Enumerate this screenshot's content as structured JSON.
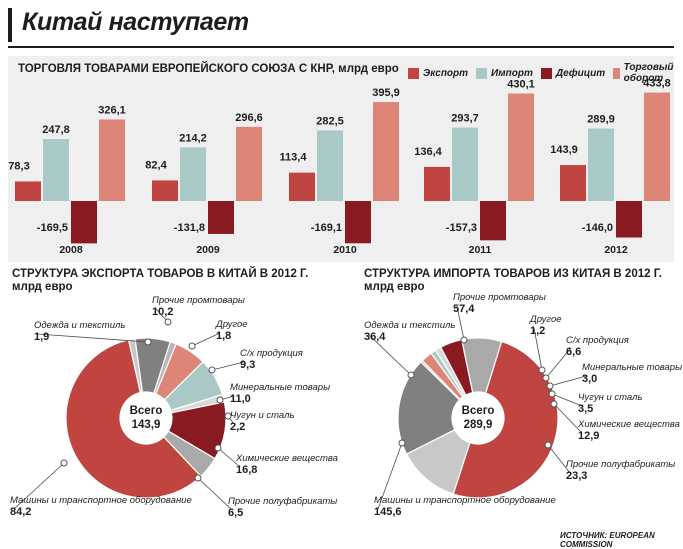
{
  "title": "Китай наступает",
  "bar_title": "ТОРГОВЛЯ ТОВАРАМИ ЕВРОПЕЙСКОГО СОЮЗА С КНР, млрд евро",
  "legend": [
    {
      "label": "Экспорт",
      "color": "#c0443f"
    },
    {
      "label": "Импорт",
      "color": "#a8c9c5"
    },
    {
      "label": "Дефицит",
      "color": "#8a1a22"
    },
    {
      "label": "Торговый оборот",
      "color": "#dd8576"
    }
  ],
  "export_title": {
    "line1": "СТРУКТУРА ЭКСПОРТА ТОВАРОВ В КИТАЙ В 2012 Г.",
    "line2": "млрд евро"
  },
  "import_title": {
    "line1": "СТРУКТУРА ИМПОРТА ТОВАРОВ ИЗ КИТАЯ В 2012 Г.",
    "line2": "млрд евро"
  },
  "source": "ИСТОЧНИК: EUROPEAN COMMISSION",
  "chart_data": [
    {
      "type": "bar",
      "title": "ТОРГОВЛЯ ТОВАРАМИ ЕВРОПЕЙСКОГО СОЮЗА С КНР, млрд евро",
      "categories": [
        "2008",
        "2009",
        "2010",
        "2011",
        "2012"
      ],
      "series": [
        {
          "name": "Экспорт",
          "values": [
            78.3,
            82.4,
            113.4,
            136.4,
            143.9
          ],
          "labels": [
            "78,3",
            "82,4",
            "113,4",
            "136,4",
            "143,9"
          ]
        },
        {
          "name": "Импорт",
          "values": [
            247.8,
            214.2,
            282.5,
            293.7,
            289.9
          ],
          "labels": [
            "247,8",
            "214,2",
            "282,5",
            "293,7",
            "289,9"
          ]
        },
        {
          "name": "Дефицит",
          "values": [
            -169.5,
            -131.8,
            -169.1,
            -157.3,
            -146.0
          ],
          "labels": [
            "-169,5",
            "-131,8",
            "-169,1",
            "-157,3",
            "-146,0"
          ]
        },
        {
          "name": "Торговый оборот",
          "values": [
            326.1,
            296.6,
            395.9,
            430.1,
            433.8
          ],
          "labels": [
            "326,1",
            "296,6",
            "395,9",
            "430,1",
            "433,8"
          ]
        }
      ]
    },
    {
      "type": "pie",
      "title": "СТРУКТУРА ЭКСПОРТА ТОВАРОВ В КИТАЙ В 2012 Г.",
      "center_label": "Всего",
      "total": 143.9,
      "total_label": "143,9",
      "slices": [
        {
          "label": "Одежда и текстиль",
          "value": 1.9,
          "value_label": "1,9",
          "color": "#c8c8c8"
        },
        {
          "label": "Прочие промтовары",
          "value": 10.2,
          "value_label": "10,2",
          "color": "#808080"
        },
        {
          "label": "Другое",
          "value": 1.8,
          "value_label": "1,8",
          "color": "#b8b8b8"
        },
        {
          "label": "С/х продукция",
          "value": 9.3,
          "value_label": "9,3",
          "color": "#dd8576"
        },
        {
          "label": "Минеральные товары",
          "value": 11.0,
          "value_label": "11,0",
          "color": "#a8c9c5"
        },
        {
          "label": "Чугун и сталь",
          "value": 2.2,
          "value_label": "2,2",
          "color": "#d8d8d8"
        },
        {
          "label": "Химические вещества",
          "value": 16.8,
          "value_label": "16,8",
          "color": "#8a1a22"
        },
        {
          "label": "Прочие полуфабрикаты",
          "value": 6.5,
          "value_label": "6,5",
          "color": "#a9a9a9"
        },
        {
          "label": "Машины и транспортное оборудование",
          "value": 84.2,
          "value_label": "84,2",
          "color": "#c0443f"
        }
      ]
    },
    {
      "type": "pie",
      "title": "СТРУКТУРА ИМПОРТА ТОВАРОВ ИЗ КИТАЯ В 2012 Г.",
      "center_label": "Всего",
      "total": 289.9,
      "total_label": "289,9",
      "slices": [
        {
          "label": "Одежда и текстиль",
          "value": 36.4,
          "value_label": "36,4",
          "color": "#c8c8c8"
        },
        {
          "label": "Прочие промтовары",
          "value": 57.4,
          "value_label": "57,4",
          "color": "#808080"
        },
        {
          "label": "Другое",
          "value": 1.2,
          "value_label": "1,2",
          "color": "#b8b8b8"
        },
        {
          "label": "С/х продукция",
          "value": 6.6,
          "value_label": "6,6",
          "color": "#dd8576"
        },
        {
          "label": "Минеральные товары",
          "value": 3.0,
          "value_label": "3,0",
          "color": "#a8c9c5"
        },
        {
          "label": "Чугун и сталь",
          "value": 3.5,
          "value_label": "3,5",
          "color": "#d8d8d8"
        },
        {
          "label": "Химические вещества",
          "value": 12.9,
          "value_label": "12,9",
          "color": "#8a1a22"
        },
        {
          "label": "Прочие полуфабрикаты",
          "value": 23.3,
          "value_label": "23,3",
          "color": "#a9a9a9"
        },
        {
          "label": "Машины и транспортное оборудование",
          "value": 145.6,
          "value_label": "145,6",
          "color": "#c0443f"
        }
      ]
    }
  ]
}
